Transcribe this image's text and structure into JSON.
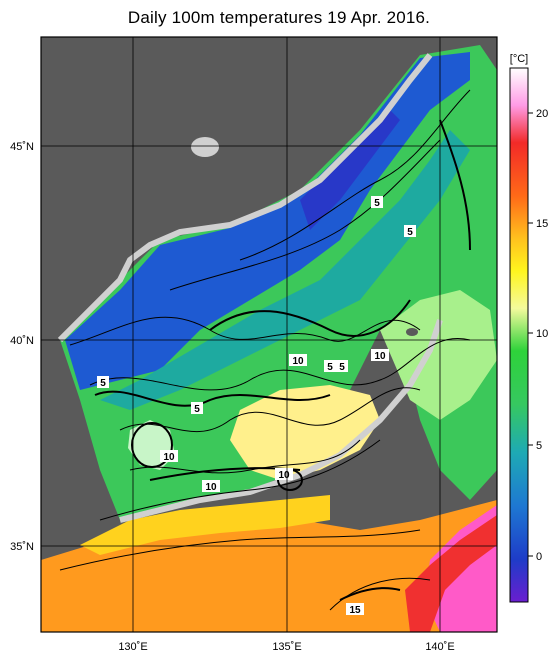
{
  "title": "Daily 100m temperatures 19 Apr. 2016.",
  "colorbar": {
    "unit": "[°C]",
    "ticks": [
      "20",
      "15",
      "10",
      "5",
      "0"
    ]
  },
  "map": {
    "lat_labels": [
      "45˚N",
      "40˚N",
      "35˚N"
    ],
    "lon_labels": [
      "130˚E",
      "135˚E",
      "140˚E"
    ],
    "contour_labels": [
      "5",
      "5",
      "5",
      "5",
      "5",
      "5",
      "10",
      "10",
      "10",
      "10",
      "10",
      "15"
    ]
  },
  "colors": {
    "land": "#5a5a5a",
    "coast_shelf": "#d0d0d0",
    "cold": "#1e46c8",
    "cool": "#1ea0b4",
    "mid": "#32c83c",
    "warm": "#fff08c",
    "hot": "#ff8c1e",
    "very_hot": "#ff46b4"
  }
}
